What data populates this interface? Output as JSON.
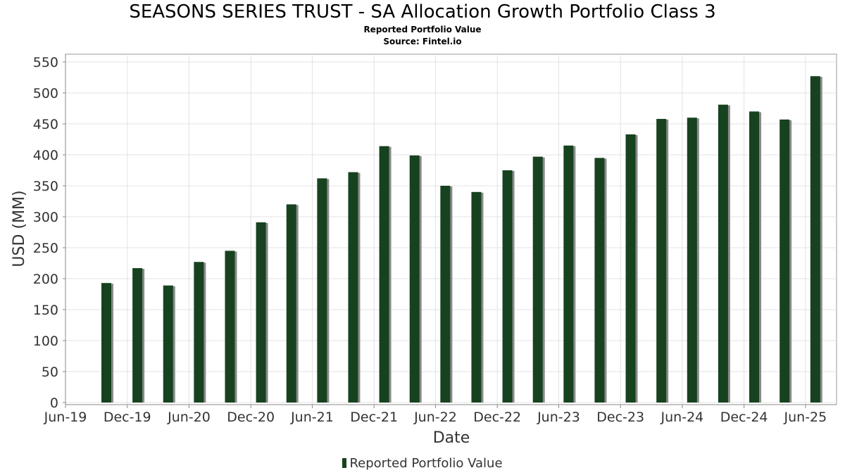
{
  "title": "SEASONS SERIES TRUST - SA Allocation Growth Portfolio Class 3",
  "subtitle_1": "Reported Portfolio Value",
  "subtitle_2": "Source: Fintel.io",
  "colors": {
    "bar": "#17421f",
    "bar_shadow": "#8a8a8a",
    "grid": "#e3e3e3",
    "axis": "#888888",
    "text": "#333333"
  },
  "chart_data": {
    "type": "bar",
    "title": "SEASONS SERIES TRUST - SA Allocation Growth Portfolio Class 3",
    "xlabel": "Date",
    "ylabel": "USD (MM)",
    "ylim": [
      0,
      550
    ],
    "yticks": [
      0,
      50,
      100,
      150,
      200,
      250,
      300,
      350,
      400,
      450,
      500,
      550
    ],
    "xlim": [
      "2019-06-01",
      "2025-09-01"
    ],
    "xticks": [
      {
        "date": "2019-06-01",
        "label": "Jun-19"
      },
      {
        "date": "2019-12-01",
        "label": "Dec-19"
      },
      {
        "date": "2020-06-01",
        "label": "Jun-20"
      },
      {
        "date": "2020-12-01",
        "label": "Dec-20"
      },
      {
        "date": "2021-06-01",
        "label": "Jun-21"
      },
      {
        "date": "2021-12-01",
        "label": "Dec-21"
      },
      {
        "date": "2022-06-01",
        "label": "Jun-22"
      },
      {
        "date": "2022-12-01",
        "label": "Dec-22"
      },
      {
        "date": "2023-06-01",
        "label": "Jun-23"
      },
      {
        "date": "2023-12-01",
        "label": "Dec-23"
      },
      {
        "date": "2024-06-01",
        "label": "Jun-24"
      },
      {
        "date": "2024-12-01",
        "label": "Dec-24"
      },
      {
        "date": "2025-06-01",
        "label": "Jun-25"
      }
    ],
    "grid": true,
    "legend_position": "bottom",
    "series": [
      {
        "name": "Reported Portfolio Value",
        "points": [
          {
            "x": "2019-09-30",
            "y": 193
          },
          {
            "x": "2019-12-31",
            "y": 217
          },
          {
            "x": "2020-03-31",
            "y": 189
          },
          {
            "x": "2020-06-30",
            "y": 227
          },
          {
            "x": "2020-09-30",
            "y": 245
          },
          {
            "x": "2020-12-31",
            "y": 291
          },
          {
            "x": "2021-03-31",
            "y": 320
          },
          {
            "x": "2021-06-30",
            "y": 362
          },
          {
            "x": "2021-09-30",
            "y": 372
          },
          {
            "x": "2021-12-31",
            "y": 414
          },
          {
            "x": "2022-03-31",
            "y": 399
          },
          {
            "x": "2022-06-30",
            "y": 350
          },
          {
            "x": "2022-09-30",
            "y": 340
          },
          {
            "x": "2022-12-31",
            "y": 375
          },
          {
            "x": "2023-03-31",
            "y": 397
          },
          {
            "x": "2023-06-30",
            "y": 415
          },
          {
            "x": "2023-09-30",
            "y": 395
          },
          {
            "x": "2023-12-31",
            "y": 433
          },
          {
            "x": "2024-03-31",
            "y": 458
          },
          {
            "x": "2024-06-30",
            "y": 460
          },
          {
            "x": "2024-09-30",
            "y": 481
          },
          {
            "x": "2024-12-31",
            "y": 470
          },
          {
            "x": "2025-03-31",
            "y": 457
          },
          {
            "x": "2025-06-30",
            "y": 527
          }
        ]
      }
    ]
  },
  "legend": {
    "label": "Reported Portfolio Value"
  }
}
